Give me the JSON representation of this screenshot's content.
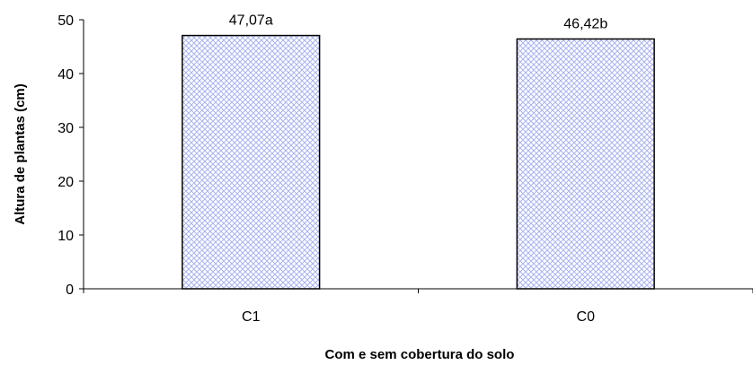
{
  "chart_data": {
    "type": "bar",
    "categories": [
      "C1",
      "C0"
    ],
    "values": [
      47.07,
      46.42
    ],
    "data_labels": [
      "47,07a",
      "46,42b"
    ],
    "title": "",
    "xlabel": "Com e sem cobertura do solo",
    "ylabel": "Altura de plantas (cm)",
    "ylim": [
      0,
      50
    ],
    "y_ticks": [
      0,
      10,
      20,
      30,
      40,
      50
    ],
    "y_tick_labels": [
      "0",
      "10",
      "20",
      "30",
      "40",
      "50"
    ],
    "grid": false,
    "legend": "none",
    "bar_fill_pattern": "crosshatch",
    "bar_pattern_color": "#aab4f0",
    "bar_border_color": "#000000"
  }
}
